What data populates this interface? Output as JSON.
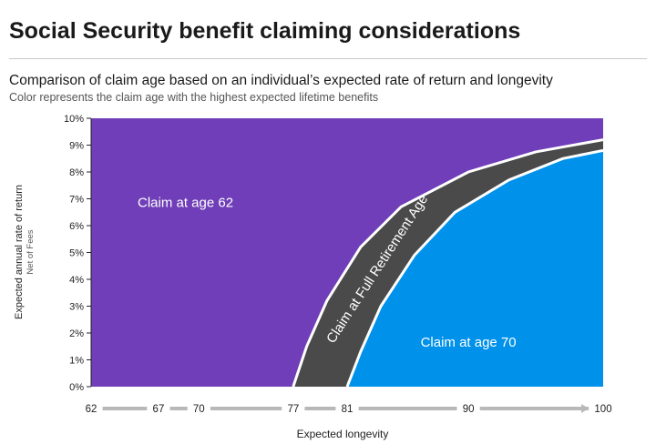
{
  "header": {
    "title": "Social Security benefit claiming considerations",
    "subtitle": "Comparison of claim age based on an individual’s expected rate of return and longevity",
    "note": "Color represents the claim age with the highest expected lifetime benefits"
  },
  "chart_data": {
    "type": "area",
    "xlabel": "Expected longevity",
    "ylabel": "Expected annual rate of return",
    "ylabel_sub": "Net of Fees",
    "xlim": [
      62,
      100
    ],
    "ylim": [
      0,
      10
    ],
    "x_ticks": [
      62,
      67,
      70,
      77,
      81,
      90,
      100
    ],
    "y_ticks": [
      "0%",
      "1%",
      "2%",
      "3%",
      "4%",
      "5%",
      "6%",
      "7%",
      "8%",
      "9%",
      "10%"
    ],
    "boundaries": [
      {
        "between": [
          "Claim at age 62",
          "Claim at Full Retirement Age"
        ],
        "points": [
          [
            77,
            0
          ],
          [
            78,
            1.5
          ],
          [
            79.5,
            3.2
          ],
          [
            82,
            5.2
          ],
          [
            85,
            6.7
          ],
          [
            90,
            8.0
          ],
          [
            95,
            8.75
          ],
          [
            100,
            9.2
          ]
        ]
      },
      {
        "between": [
          "Claim at Full Retirement Age",
          "Claim at age 70"
        ],
        "points": [
          [
            81,
            0
          ],
          [
            82,
            1.3
          ],
          [
            83.5,
            3.0
          ],
          [
            86,
            4.9
          ],
          [
            89,
            6.5
          ],
          [
            93,
            7.7
          ],
          [
            97,
            8.5
          ],
          [
            100,
            8.8
          ]
        ]
      }
    ],
    "regions": [
      {
        "label": "Claim at age 62",
        "color": "#6f3eb8",
        "label_at": [
          69,
          6.7
        ]
      },
      {
        "label": "Claim at Full Retirement Age",
        "color": "#4a4a4a",
        "label_at": [
          83.5,
          4.3
        ],
        "label_rotation": -57
      },
      {
        "label": "Claim at age 70",
        "color": "#0091ea",
        "label_at": [
          90,
          1.5
        ]
      }
    ],
    "grid": false,
    "legend": "none"
  }
}
